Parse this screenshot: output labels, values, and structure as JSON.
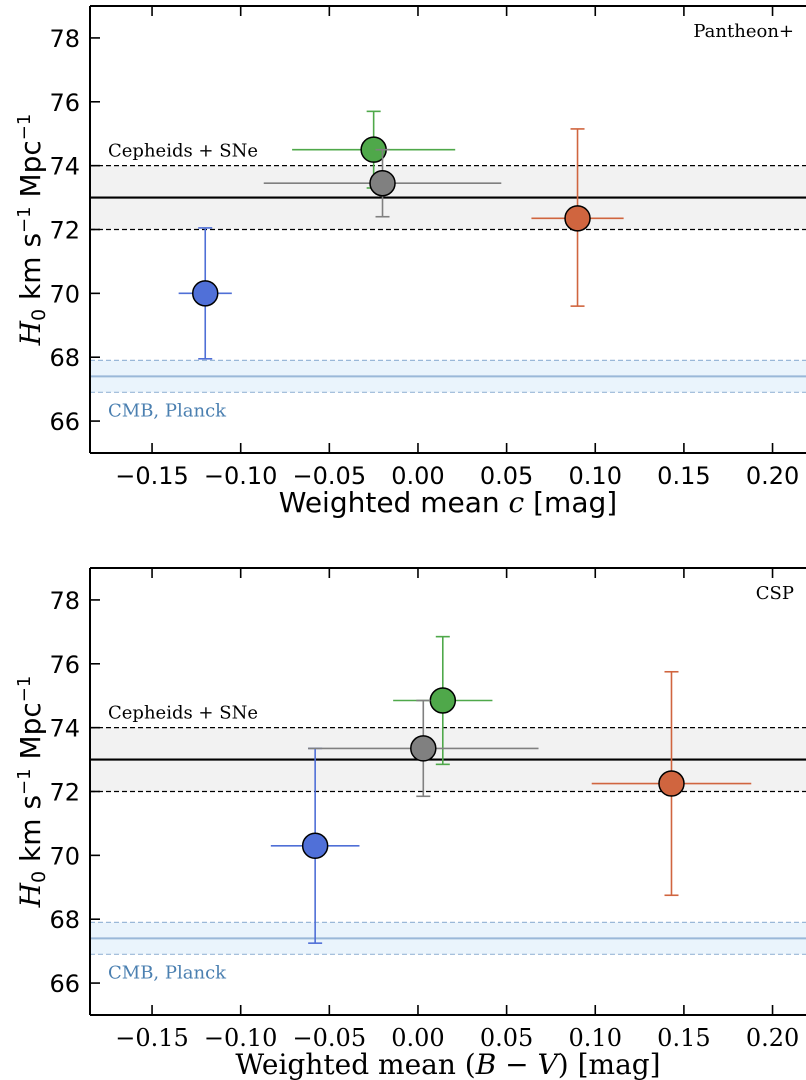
{
  "chart_data": [
    {
      "type": "scatter",
      "panel_label": "Pantheon+",
      "xlabel_prefix": "Weighted mean ",
      "xlabel_var": "c",
      "xlabel_suffix": " [mag]",
      "ylabel_var": "H",
      "ylabel_sub": "0",
      "ylabel_units": " km s",
      "ylabel_sup1": "−1",
      "ylabel_units2": " Mpc",
      "ylabel_sup2": "−1",
      "xlim": [
        -0.185,
        0.22
      ],
      "ylim": [
        65,
        79
      ],
      "xticks": [
        -0.15,
        -0.1,
        -0.05,
        0.0,
        0.05,
        0.1,
        0.15,
        0.2
      ],
      "xtick_labels": [
        "−0.15",
        "−0.10",
        "−0.05",
        "0.00",
        "0.05",
        "0.10",
        "0.15",
        "0.20"
      ],
      "yticks": [
        66,
        68,
        70,
        72,
        74,
        76,
        78
      ],
      "ytick_labels": [
        "66",
        "68",
        "70",
        "72",
        "74",
        "76",
        "78"
      ],
      "reference_bands": [
        {
          "label": "Cepheids + SNe",
          "center": 73.0,
          "low": 72.0,
          "high": 74.0,
          "color": "#000000",
          "fill": "#f2f2f2"
        },
        {
          "label": "CMB, Planck",
          "center": 67.4,
          "low": 66.9,
          "high": 67.9,
          "color": "#9ab8d8",
          "label_color": "#4a7fb0",
          "fill": "#eaf4fc"
        }
      ],
      "points": [
        {
          "x": -0.12,
          "y": 70.0,
          "xerr": 0.015,
          "yerr_low": 2.05,
          "yerr_high": 2.05,
          "color": "#5070d8",
          "ecolor": "#4f6fd6"
        },
        {
          "x": -0.025,
          "y": 74.5,
          "xerr": 0.046,
          "yerr_low": 1.2,
          "yerr_high": 1.2,
          "color": "#4fa84a",
          "ecolor": "#4fa84a"
        },
        {
          "x": -0.02,
          "y": 73.45,
          "xerr": 0.067,
          "yerr_low": 1.05,
          "yerr_high": 1.05,
          "color": "#808080",
          "ecolor": "#808080"
        },
        {
          "x": 0.09,
          "y": 72.35,
          "xerr": 0.026,
          "yerr_low": 2.75,
          "yerr_high": 2.8,
          "color": "#d0653f",
          "ecolor": "#d0653f"
        }
      ]
    },
    {
      "type": "scatter",
      "panel_label": "CSP",
      "xlabel_prefix": "Weighted mean (",
      "xlabel_var": "B",
      "xlabel_minus": " − ",
      "xlabel_var2": "V",
      "xlabel_suffix": ") [mag]",
      "ylabel_var": "H",
      "ylabel_sub": "0",
      "ylabel_units": " km s",
      "ylabel_sup1": "−1",
      "ylabel_units2": " Mpc",
      "ylabel_sup2": "−1",
      "xlim": [
        -0.185,
        0.22
      ],
      "ylim": [
        65,
        79
      ],
      "xticks": [
        -0.15,
        -0.1,
        -0.05,
        0.0,
        0.05,
        0.1,
        0.15,
        0.2
      ],
      "xtick_labels": [
        "−0.15",
        "−0.10",
        "−0.05",
        "0.00",
        "0.05",
        "0.10",
        "0.15",
        "0.20"
      ],
      "yticks": [
        66,
        68,
        70,
        72,
        74,
        76,
        78
      ],
      "ytick_labels": [
        "66",
        "68",
        "70",
        "72",
        "74",
        "76",
        "78"
      ],
      "reference_bands": [
        {
          "label": "Cepheids + SNe",
          "center": 73.0,
          "low": 72.0,
          "high": 74.0,
          "color": "#000000",
          "fill": "#f2f2f2"
        },
        {
          "label": "CMB, Planck",
          "center": 67.4,
          "low": 66.9,
          "high": 67.9,
          "color": "#9ab8d8",
          "label_color": "#4a7fb0",
          "fill": "#eaf4fc"
        }
      ],
      "points": [
        {
          "x": -0.058,
          "y": 70.3,
          "xerr": 0.025,
          "yerr_low": 3.05,
          "yerr_high": 3.05,
          "color": "#5070d8",
          "ecolor": "#4f6fd6"
        },
        {
          "x": 0.014,
          "y": 74.85,
          "xerr": 0.028,
          "yerr_low": 2.0,
          "yerr_high": 2.0,
          "color": "#4fa84a",
          "ecolor": "#4fa84a"
        },
        {
          "x": 0.003,
          "y": 73.35,
          "xerr": 0.065,
          "yerr_low": 1.5,
          "yerr_high": 1.5,
          "color": "#808080",
          "ecolor": "#808080"
        },
        {
          "x": 0.143,
          "y": 72.25,
          "xerr": 0.045,
          "yerr_low": 3.5,
          "yerr_high": 3.5,
          "color": "#d0653f",
          "ecolor": "#d0653f"
        }
      ]
    }
  ]
}
